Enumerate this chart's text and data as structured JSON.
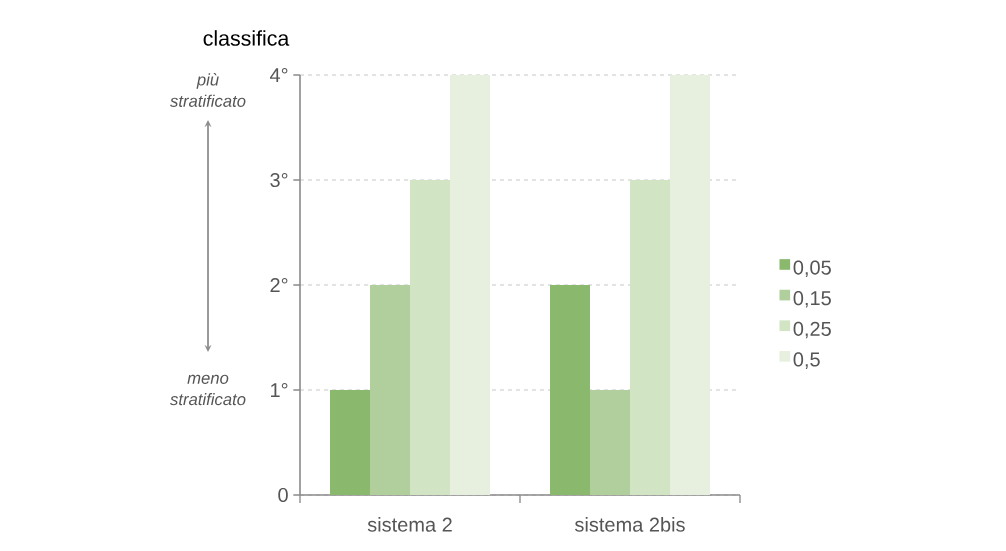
{
  "chart_data": {
    "type": "bar",
    "ylabel": "classifica",
    "categories": [
      "sistema 2",
      "sistema 2bis"
    ],
    "series": [
      {
        "name": "0,05",
        "color": "#8ab96e",
        "values": [
          1,
          2
        ]
      },
      {
        "name": "0,15",
        "color": "#b0cf9c",
        "values": [
          2,
          1
        ]
      },
      {
        "name": "0,25",
        "color": "#d1e4c3",
        "values": [
          3,
          3
        ]
      },
      {
        "name": "0,5",
        "color": "#e7f0df",
        "values": [
          4,
          4
        ]
      }
    ],
    "ylim": [
      0,
      4
    ],
    "yticks": [
      0,
      {
        "value": 1,
        "label": "1°"
      },
      {
        "value": 2,
        "label": "2°"
      },
      {
        "value": 3,
        "label": "3°"
      },
      {
        "value": 4,
        "label": "4°"
      }
    ],
    "grid": "y",
    "legend": "right",
    "annotations": [
      "più stratificato",
      "meno stratificato"
    ]
  }
}
